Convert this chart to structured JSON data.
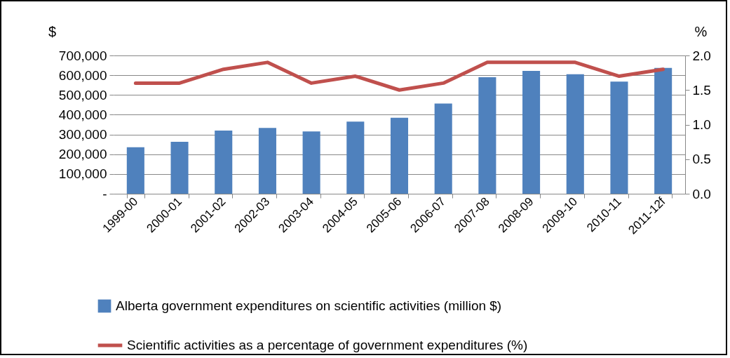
{
  "chart_data": {
    "type": "bar",
    "ylabel": "$",
    "y2label": "%",
    "categories": [
      "1999-00",
      "2000-01",
      "2001-02",
      "2002-03",
      "2003-04",
      "2004-05",
      "2005-06",
      "2006-07",
      "2007-08",
      "2008-09",
      "2009-10",
      "2010-11",
      "2011-12f"
    ],
    "series": [
      {
        "name": "Alberta government expenditures on scientific activities (million $)",
        "color": "#4f81bd",
        "values": [
          235000,
          263000,
          320000,
          333000,
          315000,
          365000,
          385000,
          457000,
          590000,
          622000,
          605000,
          568000,
          637000
        ]
      },
      {
        "name": "Scientific activities as a percentage of  government expenditures (%)",
        "type": "line",
        "axis": "y2",
        "color": "#c0504d",
        "values": [
          1.6,
          1.6,
          1.8,
          1.9,
          1.6,
          1.7,
          1.5,
          1.6,
          1.9,
          1.9,
          1.9,
          1.7,
          1.8
        ]
      }
    ],
    "ylim": [
      0,
      700000
    ],
    "yticks": [
      {
        "value": 0,
        "label": "-"
      },
      {
        "value": 100000,
        "label": "100,000"
      },
      {
        "value": 200000,
        "label": "200,000"
      },
      {
        "value": 300000,
        "label": "300,000"
      },
      {
        "value": 400000,
        "label": "400,000"
      },
      {
        "value": 500000,
        "label": "500,000"
      },
      {
        "value": 600000,
        "label": "600,000"
      },
      {
        "value": 700000,
        "label": "700,000"
      }
    ],
    "y2lim": [
      0,
      2
    ],
    "y2ticks": [
      {
        "value": 0,
        "label": "0.0"
      },
      {
        "value": 0.5,
        "label": "0.5"
      },
      {
        "value": 1,
        "label": "1.0"
      },
      {
        "value": 1.5,
        "label": "1.5"
      },
      {
        "value": 2,
        "label": "2.0"
      }
    ],
    "grid": "y",
    "legend": "bottom",
    "marker": "none",
    "line_style": "solid"
  }
}
